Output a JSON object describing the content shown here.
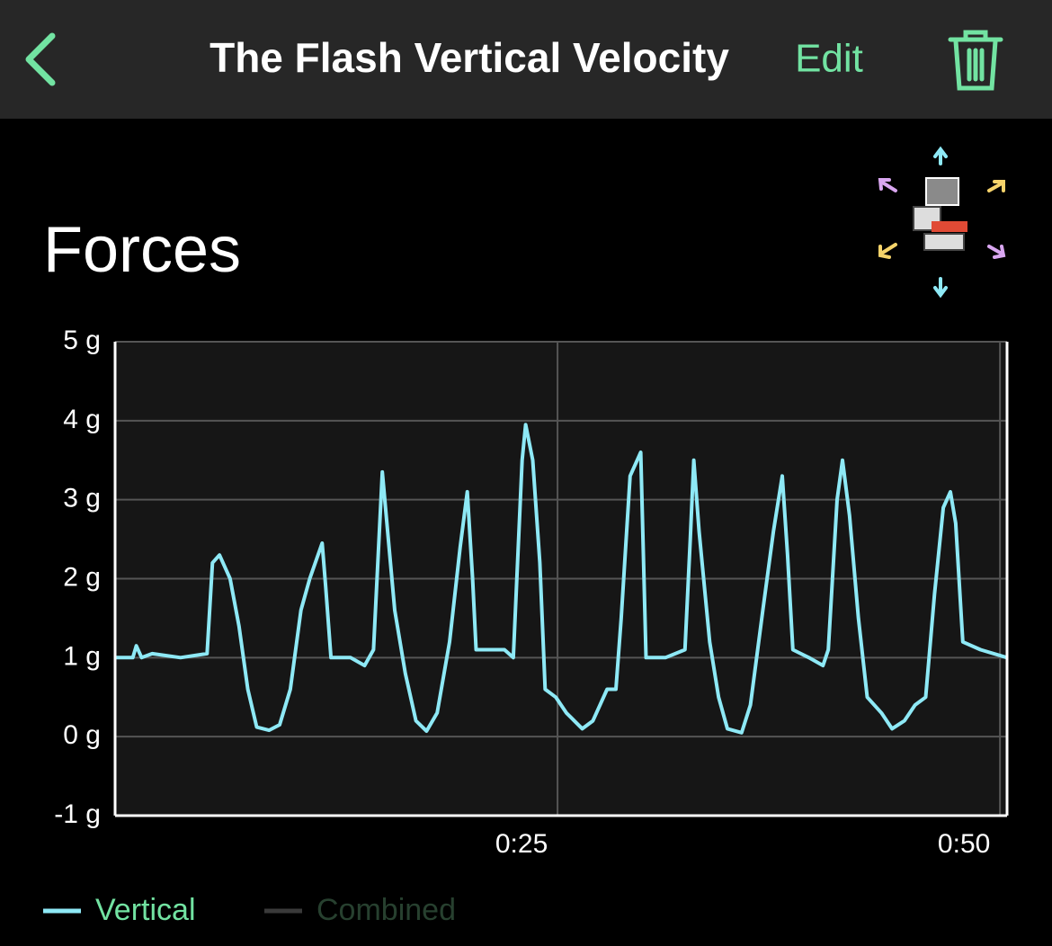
{
  "header": {
    "title": "The Flash Vertical Velocity",
    "action": "Edit"
  },
  "section_title": "Forces",
  "chart_data": {
    "type": "line",
    "x": [
      0,
      1.0,
      1.2,
      1.5,
      2.1,
      3.7,
      5.2,
      5.5,
      5.9,
      6.5,
      7.0,
      7.5,
      8.0,
      8.7,
      9.3,
      9.9,
      10.5,
      11.0,
      11.7,
      11.9,
      12.2,
      13.3,
      14.1,
      14.6,
      15.1,
      15.4,
      15.8,
      16.4,
      17.0,
      17.6,
      18.2,
      18.9,
      19.5,
      19.9,
      20.2,
      20.4,
      21.2,
      22.0,
      22.5,
      22.7,
      23.0,
      23.2,
      23.6,
      24.0,
      24.3,
      24.9,
      25.5,
      26.4,
      27.0,
      27.8,
      28.3,
      28.6,
      29.1,
      29.7,
      30.0,
      31.1,
      32.2,
      32.5,
      32.7,
      33.0,
      33.6,
      34.1,
      34.6,
      35.4,
      35.9,
      36.6,
      37.2,
      37.7,
      38.0,
      38.3,
      39.2,
      40.0,
      40.3,
      40.8,
      41.1,
      41.5,
      42.0,
      42.5,
      43.3,
      43.9,
      44.6,
      45.2,
      45.8,
      46.3,
      46.8,
      47.2,
      47.5,
      47.9,
      48.9,
      50.4
    ],
    "series": [
      {
        "name": "Vertical",
        "color": "#8ee9f6",
        "values": [
          1.0,
          1.0,
          1.15,
          1.0,
          1.05,
          1.0,
          1.05,
          2.2,
          2.3,
          2.0,
          1.4,
          0.6,
          0.12,
          0.08,
          0.15,
          0.6,
          1.6,
          2.0,
          2.45,
          1.9,
          1.0,
          1.0,
          0.9,
          1.1,
          3.35,
          2.6,
          1.6,
          0.8,
          0.2,
          0.07,
          0.3,
          1.2,
          2.4,
          3.1,
          2.0,
          1.1,
          1.1,
          1.1,
          1.0,
          2.0,
          3.5,
          3.95,
          3.5,
          2.2,
          0.6,
          0.5,
          0.3,
          0.1,
          0.2,
          0.6,
          0.6,
          1.5,
          3.3,
          3.6,
          1.0,
          1.0,
          1.1,
          2.5,
          3.5,
          2.6,
          1.2,
          0.5,
          0.1,
          0.05,
          0.4,
          1.6,
          2.6,
          3.3,
          2.3,
          1.1,
          1.0,
          0.9,
          1.1,
          3.0,
          3.5,
          2.8,
          1.5,
          0.5,
          0.3,
          0.1,
          0.2,
          0.4,
          0.5,
          1.8,
          2.9,
          3.1,
          2.7,
          1.2,
          1.1,
          1.0
        ]
      }
    ],
    "inactive_series": [
      {
        "name": "Combined",
        "color": "#3a3a3a"
      }
    ],
    "xlim": [
      0,
      50.4
    ],
    "xticks": [
      {
        "value": 25,
        "label": "0:25"
      },
      {
        "value": 50,
        "label": "0:50"
      }
    ],
    "ylim": [
      -1,
      5
    ],
    "yticks": [
      {
        "value": -1,
        "label": "-1 g"
      },
      {
        "value": 0,
        "label": "0 g"
      },
      {
        "value": 1,
        "label": "1 g"
      },
      {
        "value": 2,
        "label": "2 g"
      },
      {
        "value": 3,
        "label": "3 g"
      },
      {
        "value": 4,
        "label": "4 g"
      },
      {
        "value": 5,
        "label": "5 g"
      }
    ],
    "grid": true
  }
}
